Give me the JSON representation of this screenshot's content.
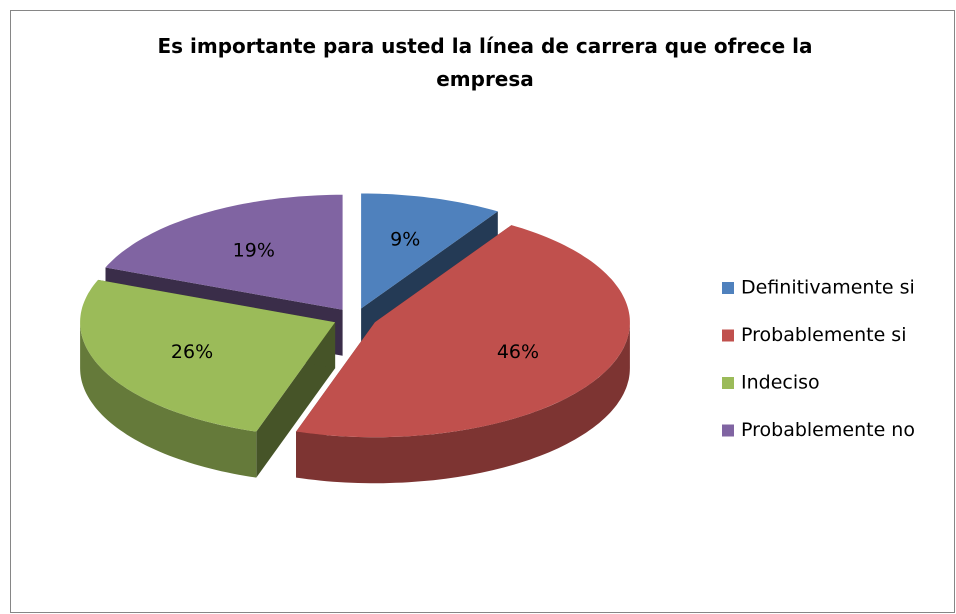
{
  "chart_data": {
    "type": "pie",
    "title": "Es importante para usted la línea de carrera que ofrece la empresa",
    "categories": [
      "Definitivamente si",
      "Probablemente si",
      "Indeciso",
      "Probablemente no"
    ],
    "values": [
      9,
      46,
      26,
      19
    ],
    "value_labels": [
      "9%",
      "46%",
      "26%",
      "19%"
    ],
    "colors": [
      "#4f81bd",
      "#c0504d",
      "#9bbb59",
      "#8064a2"
    ],
    "legend": "right"
  }
}
